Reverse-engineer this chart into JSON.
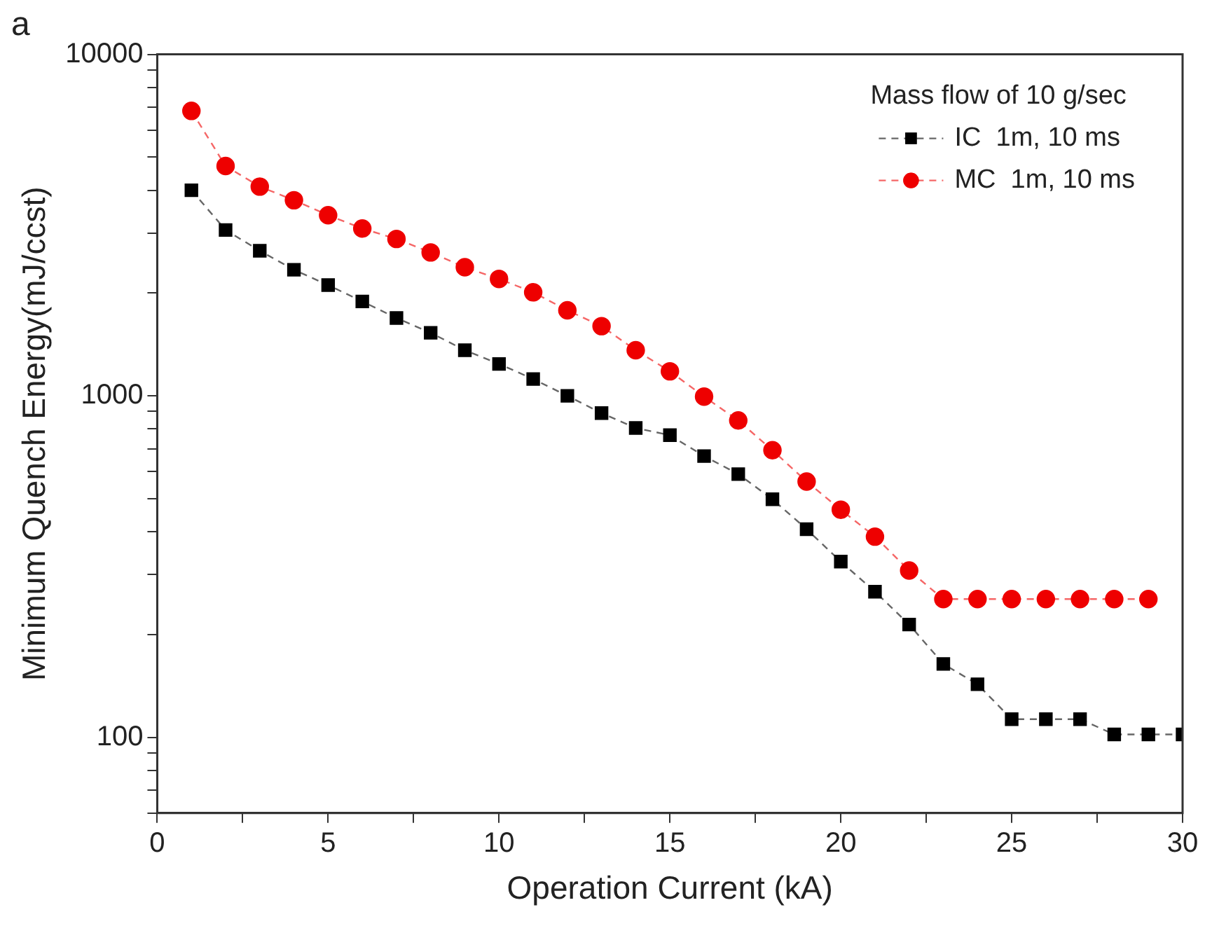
{
  "chart_data": {
    "type": "line",
    "title": "a",
    "xlabel": "Operation Current (kA)",
    "ylabel": "Minimum Quench Energy(mJ/ccst)",
    "legend_title": "Mass flow of 10 g/sec",
    "legend": "top right",
    "log": "y",
    "grid": false,
    "line_style": "dashed",
    "xlim": [
      0,
      30
    ],
    "xticks": [
      0,
      {
        "value": 2.5,
        "label": null
      },
      5,
      {
        "value": 7.5,
        "label": null
      },
      10,
      {
        "value": 12.5,
        "label": null
      },
      15,
      {
        "value": 17.5,
        "label": null
      },
      20,
      {
        "value": 22.5,
        "label": null
      },
      25,
      {
        "value": 27.5,
        "label": null
      },
      30
    ],
    "ylim": [
      60,
      10000
    ],
    "yticks": [
      {
        "value": 60,
        "label": null
      },
      {
        "value": 70,
        "label": null
      },
      {
        "value": 80,
        "label": null
      },
      {
        "value": 90,
        "label": null
      },
      100,
      {
        "value": 200,
        "label": null
      },
      {
        "value": 300,
        "label": null
      },
      {
        "value": 400,
        "label": null
      },
      {
        "value": 500,
        "label": null
      },
      {
        "value": 600,
        "label": null
      },
      {
        "value": 700,
        "label": null
      },
      {
        "value": 800,
        "label": null
      },
      {
        "value": 900,
        "label": null
      },
      1000,
      {
        "value": 2000,
        "label": null
      },
      {
        "value": 3000,
        "label": null
      },
      {
        "value": 4000,
        "label": null
      },
      {
        "value": 5000,
        "label": null
      },
      {
        "value": 6000,
        "label": null
      },
      {
        "value": 7000,
        "label": null
      },
      {
        "value": 8000,
        "label": null
      },
      {
        "value": 9000,
        "label": null
      },
      10000
    ],
    "series": [
      {
        "name": "IC  1m, 10 ms",
        "color": "#000000",
        "marker": "square",
        "x": [
          1,
          2,
          3,
          4,
          5,
          6,
          7,
          8,
          9,
          10,
          11,
          12,
          13,
          14,
          15,
          16,
          17,
          18,
          19,
          20,
          21,
          22,
          23,
          24,
          25,
          26,
          27,
          28,
          29,
          30
        ],
        "values": [
          4000,
          3060,
          2660,
          2340,
          2110,
          1890,
          1690,
          1530,
          1360,
          1240,
          1120,
          1000,
          890,
          805,
          767,
          666,
          590,
          498,
          407,
          327,
          267,
          214,
          164,
          143,
          113,
          113,
          113,
          102,
          102,
          102
        ]
      },
      {
        "name": "MC  1m, 10 ms",
        "color": "#ee0000",
        "marker": "circle",
        "x": [
          1,
          2,
          3,
          4,
          5,
          6,
          7,
          8,
          9,
          10,
          11,
          12,
          13,
          14,
          15,
          16,
          17,
          18,
          19,
          20,
          21,
          22,
          23,
          24,
          25,
          26,
          27,
          28,
          29
        ],
        "values": [
          6830,
          4710,
          4100,
          3740,
          3380,
          3090,
          2880,
          2630,
          2380,
          2200,
          2010,
          1780,
          1600,
          1360,
          1180,
          995,
          847,
          693,
          561,
          464,
          387,
          308,
          254,
          254,
          254,
          254,
          254,
          254,
          254
        ]
      }
    ]
  }
}
